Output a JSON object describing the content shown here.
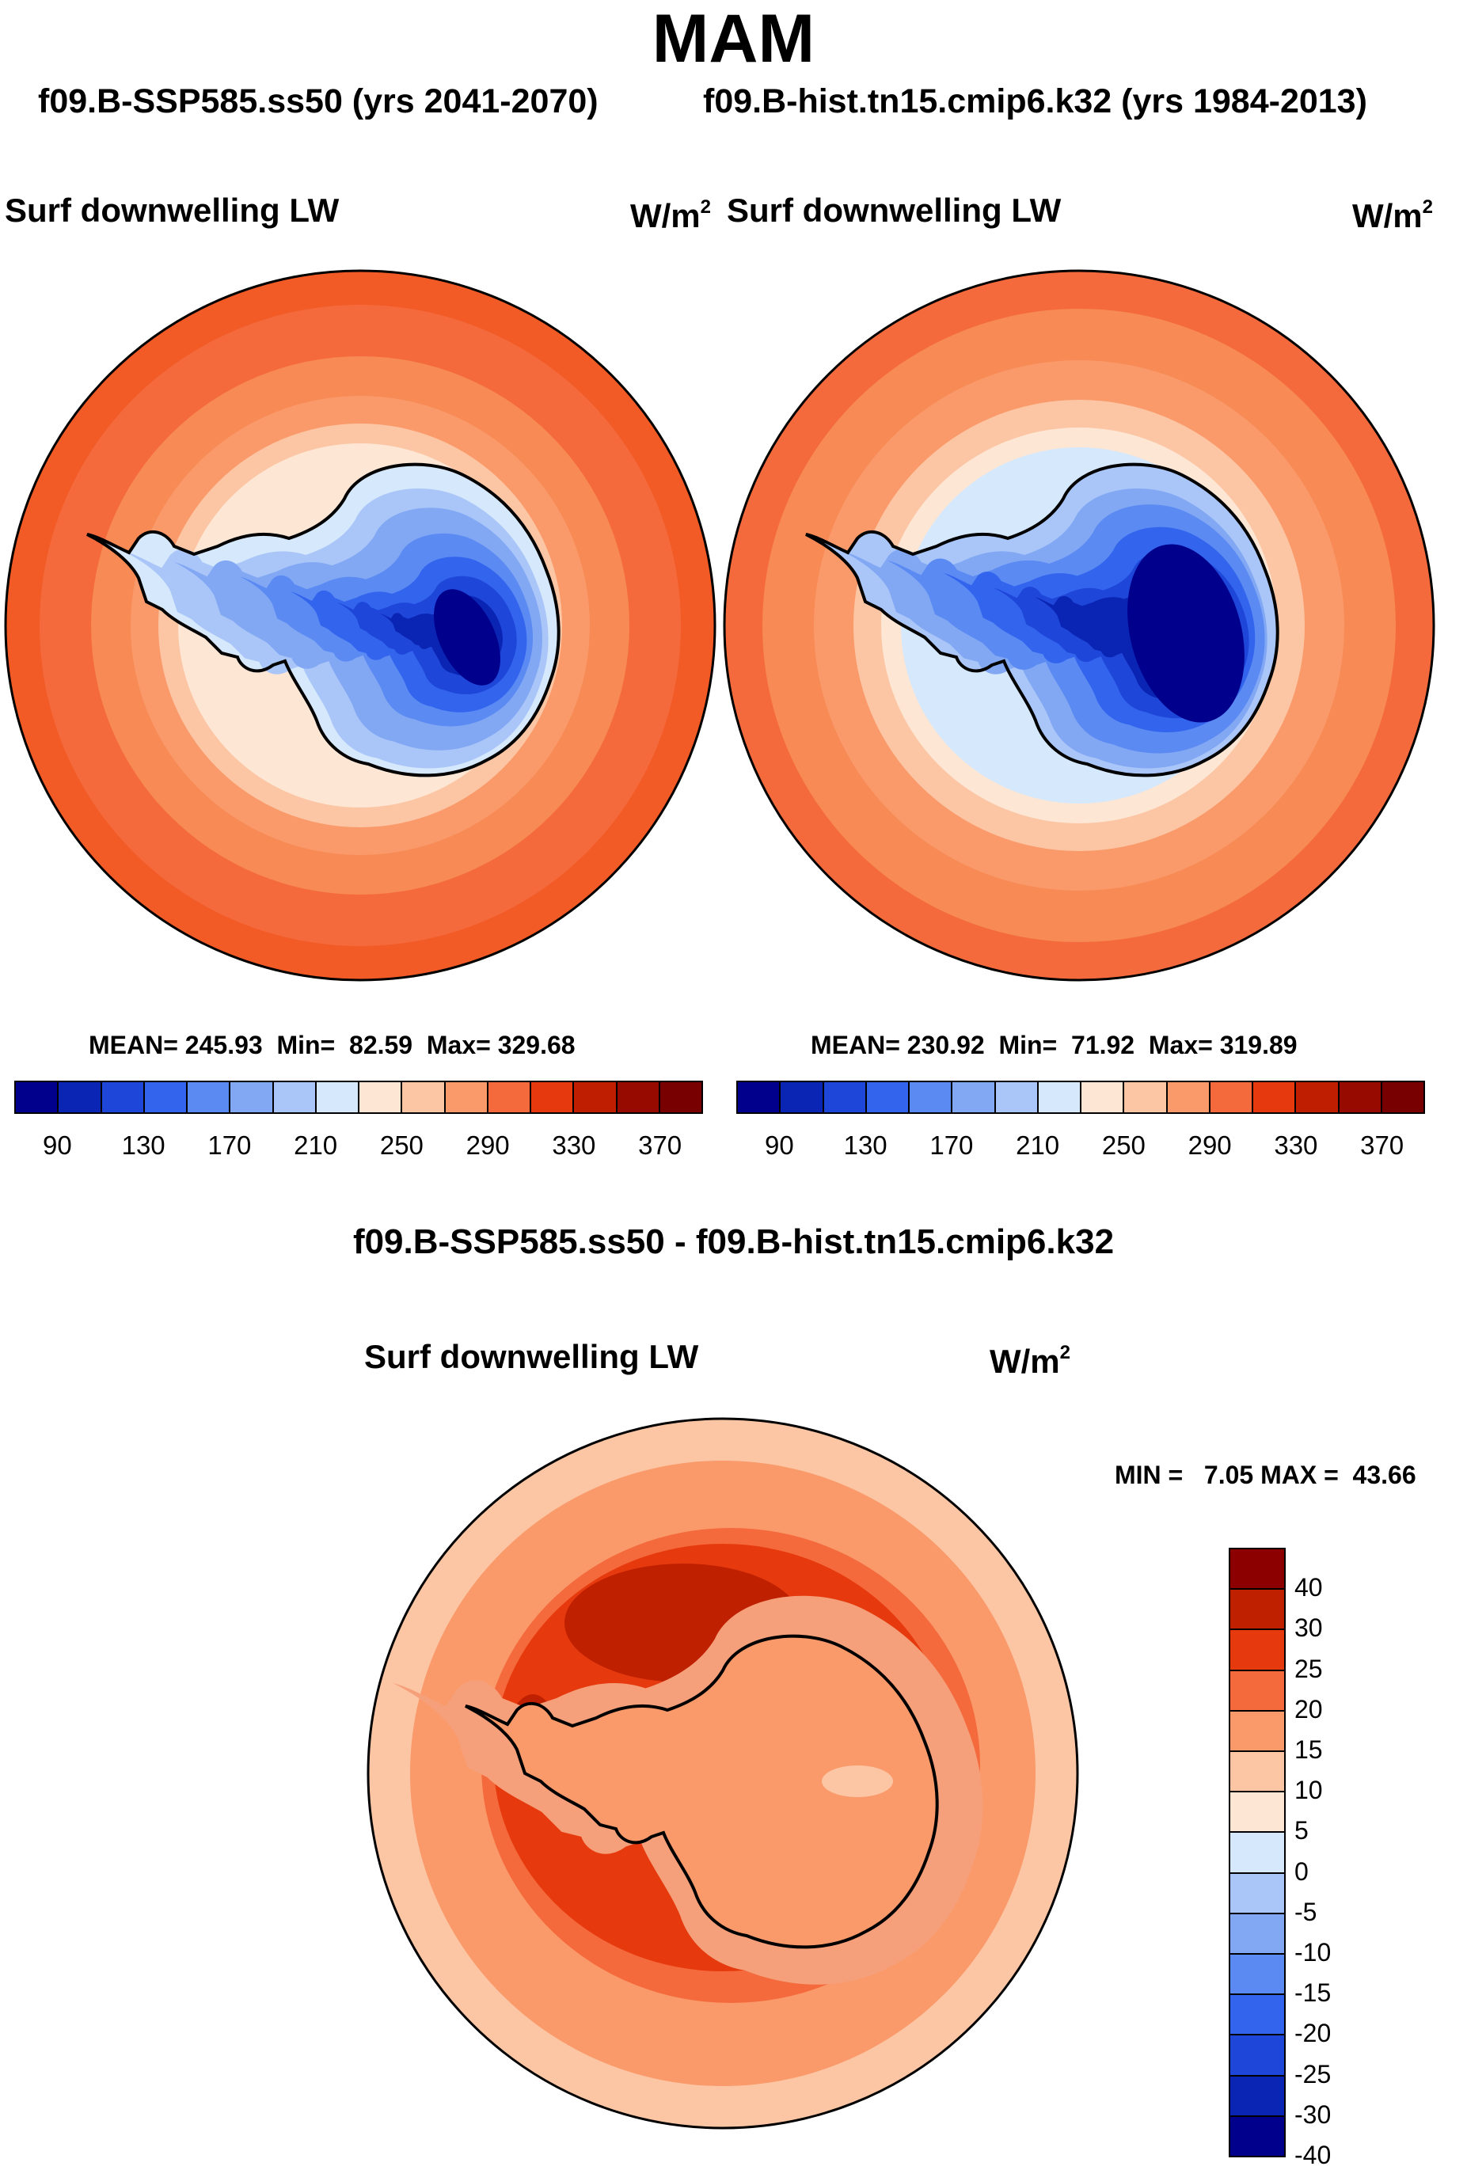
{
  "season": "MAM",
  "case1_label": "f09.B-SSP585.ss50 (yrs 2041-2070)",
  "case2_label": "f09.B-hist.tn15.cmip6.k32 (yrs 1984-2013)",
  "variable": "Surf downwelling LW",
  "units_base": "W/m",
  "units_exp": "2",
  "panel1": {
    "mean_label": "MEAN=",
    "mean": "245.93",
    "min_label": "Min=",
    "min": "82.59",
    "max_label": "Max=",
    "max": "329.68"
  },
  "panel2": {
    "mean_label": "MEAN=",
    "mean": "230.92",
    "min_label": "Min=",
    "min": "71.92",
    "max_label": "Max=",
    "max": "319.89"
  },
  "diff_title": "f09.B-SSP585.ss50 - f09.B-hist.tn15.cmip6.k32",
  "diff_stats": {
    "min_label": "MIN =",
    "min": "7.05",
    "max_label": "MAX =",
    "max": "43.66"
  },
  "abs_colorbar": {
    "ticks": [
      "90",
      "130",
      "170",
      "210",
      "250",
      "290",
      "330",
      "370"
    ],
    "colors": [
      "#00008c",
      "#0a24b4",
      "#1e46d8",
      "#3264ee",
      "#5a8af2",
      "#82a8f4",
      "#aac6f8",
      "#d6e8fc",
      "#fde6d4",
      "#fcc6a4",
      "#fa9a6a",
      "#f46a3c",
      "#e63a0e",
      "#c01e00",
      "#960a00",
      "#780000"
    ]
  },
  "diff_colorbar": {
    "ticks": [
      "40",
      "30",
      "25",
      "20",
      "15",
      "10",
      "5",
      "0",
      "-5",
      "-10",
      "-15",
      "-20",
      "-25",
      "-30",
      "-40"
    ],
    "colors": [
      "#8c0000",
      "#bf2000",
      "#e63a0e",
      "#f46a3c",
      "#fa9a6a",
      "#fcc6a4",
      "#fde6d4",
      "#d6e8fc",
      "#aac6f8",
      "#82a8f4",
      "#5a8af2",
      "#3264ee",
      "#1e46d8",
      "#0a24b4",
      "#00008c"
    ]
  }
}
